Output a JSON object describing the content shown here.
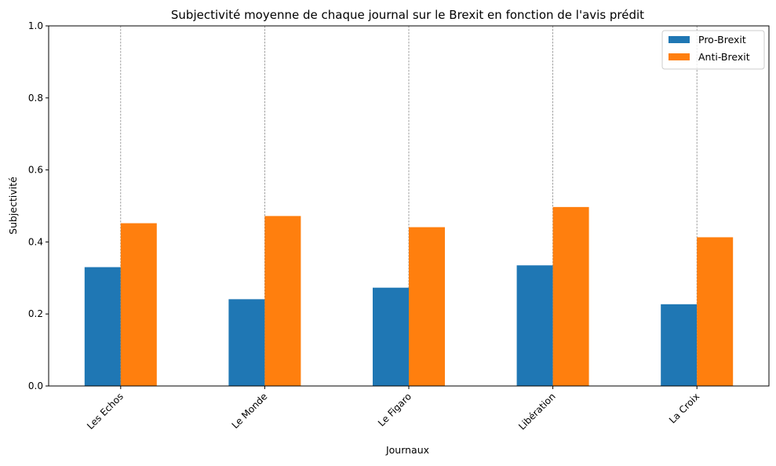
{
  "chart_data": {
    "type": "bar",
    "title": "Subjectivité moyenne de chaque journal sur le Brexit en fonction de l'avis prédit",
    "xlabel": "Journaux",
    "ylabel": "Subjectivité",
    "categories": [
      "Les Echos",
      "Le Monde",
      "Le Figaro",
      "Libération",
      "La Croix"
    ],
    "series": [
      {
        "name": "Pro-Brexit",
        "color": "#1f77b4",
        "values": [
          0.33,
          0.241,
          0.273,
          0.335,
          0.227
        ]
      },
      {
        "name": "Anti-Brexit",
        "color": "#ff7f0e",
        "values": [
          0.452,
          0.472,
          0.441,
          0.497,
          0.413
        ]
      }
    ],
    "ylim": [
      0,
      1.0
    ],
    "yticks": [
      "0.0",
      "0.2",
      "0.4",
      "0.6",
      "0.8",
      "1.0"
    ],
    "grid": "x-dashed",
    "legend_position": "top-right",
    "xtick_rotation": 45
  }
}
